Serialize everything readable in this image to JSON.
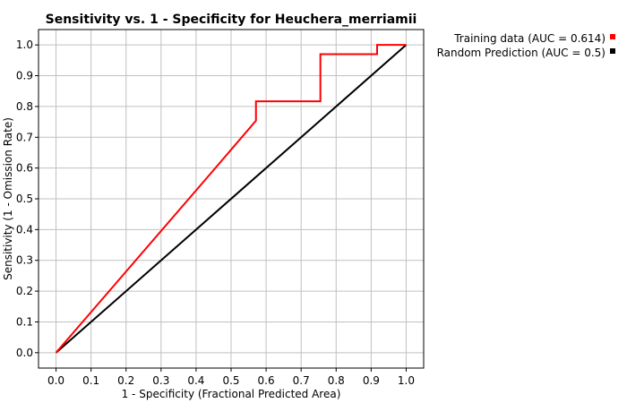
{
  "chart_data": {
    "type": "line",
    "title": "Sensitivity vs. 1 - Specificity for Heuchera_merriamii",
    "xlabel": "1 - Specificity  (Fractional Predicted Area)",
    "ylabel": "Sensitivity  (1 - Omission Rate)",
    "xlim": [
      -0.05,
      1.05
    ],
    "ylim": [
      -0.05,
      1.05
    ],
    "x_ticks": [
      "0.0",
      "0.1",
      "0.2",
      "0.3",
      "0.4",
      "0.5",
      "0.6",
      "0.7",
      "0.8",
      "0.9",
      "1.0"
    ],
    "y_ticks": [
      "0.0",
      "0.1",
      "0.2",
      "0.3",
      "0.4",
      "0.5",
      "0.6",
      "0.7",
      "0.8",
      "0.9",
      "1.0"
    ],
    "grid": true,
    "legend_position": "top-right outside",
    "series": [
      {
        "name": "Training data (AUC = 0.614)",
        "color": "#ff0000",
        "points": [
          [
            0.0,
            0.0
          ],
          [
            0.44,
            0.58
          ],
          [
            0.571,
            0.754
          ],
          [
            0.571,
            0.817
          ],
          [
            0.755,
            0.817
          ],
          [
            0.755,
            0.97
          ],
          [
            0.917,
            0.97
          ],
          [
            0.917,
            1.0
          ],
          [
            1.0,
            1.0
          ]
        ]
      },
      {
        "name": "Random Prediction (AUC = 0.5)",
        "color": "#000000",
        "points": [
          [
            0.0,
            0.0
          ],
          [
            1.0,
            1.0
          ]
        ]
      }
    ]
  }
}
